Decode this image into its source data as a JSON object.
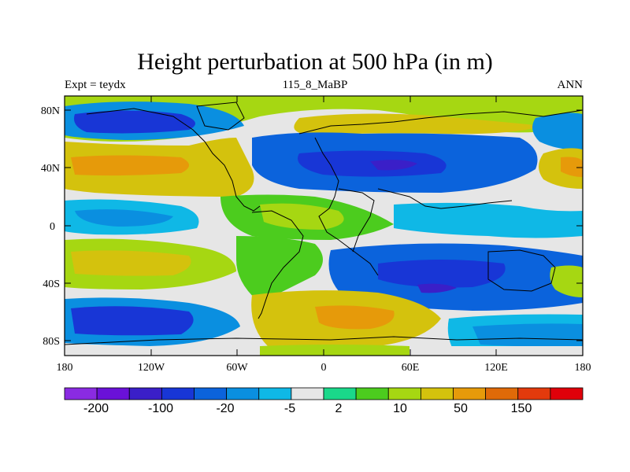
{
  "header": {
    "title": "Height perturbation at 500 hPa (in m)",
    "left_label": "Expt = teydx",
    "center_label": "115_8_MaBP",
    "right_label": "ANN"
  },
  "map": {
    "lon_range": [
      -180,
      180
    ],
    "lat_range": [
      -90,
      90
    ],
    "lat_ticks": [
      "80N",
      "40N",
      "0",
      "40S",
      "80S"
    ],
    "lon_ticks": [
      "180",
      "120W",
      "60W",
      "0",
      "60E",
      "120E",
      "180"
    ]
  },
  "colorbar": {
    "colors": [
      "#8a2be2",
      "#6a11d8",
      "#3a1fc8",
      "#1836d6",
      "#0b63dc",
      "#0a8fe0",
      "#0fb8e6",
      "#e6e6e6",
      "#1ad88a",
      "#4ccc1e",
      "#a6d712",
      "#d4c20d",
      "#e69a0a",
      "#e06a08",
      "#e33a0c",
      "#e0000a"
    ],
    "labels": [
      "-200",
      "-100",
      "-20",
      "-5",
      "2",
      "10",
      "50",
      "150"
    ]
  }
}
